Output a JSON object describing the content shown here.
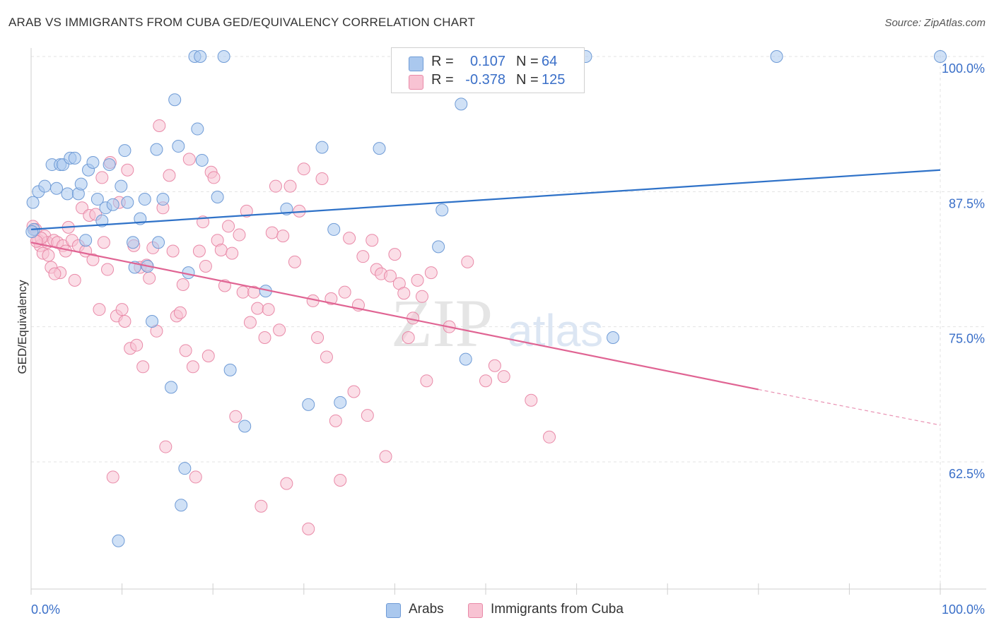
{
  "title": "ARAB VS IMMIGRANTS FROM CUBA GED/EQUIVALENCY CORRELATION CHART",
  "source": "Source: ZipAtlas.com",
  "watermark": {
    "zip": "ZIP",
    "atlas": "atlas"
  },
  "legend": {
    "rows": [
      {
        "r_label": "R =",
        "r_value": "0.107",
        "n_label": "N =",
        "n_value": "64",
        "color": "#aac8ee",
        "border": "#6f9bd6"
      },
      {
        "r_label": "R =",
        "r_value": "-0.378",
        "n_label": "N =",
        "n_value": "125",
        "color": "#f8c3d3",
        "border": "#e98aa8"
      }
    ]
  },
  "bottom_legend": [
    {
      "label": "Arabs",
      "color": "#aac8ee",
      "border": "#6f9bd6"
    },
    {
      "label": "Immigrants from Cuba",
      "color": "#f8c3d3",
      "border": "#e98aa8"
    }
  ],
  "chart_data": {
    "type": "scatter",
    "ylabel": "GED/Equivalency",
    "xlabel": "",
    "x_tick_labels": [
      "0.0%",
      "100.0%"
    ],
    "y_tick_labels": [
      "100.0%",
      "87.5%",
      "75.0%",
      "62.5%"
    ],
    "y_ticks": [
      100.0,
      87.5,
      75.0,
      62.5
    ],
    "xlim": [
      0,
      100
    ],
    "ylim": [
      52.5,
      101.5
    ],
    "grid": true,
    "series": [
      {
        "name": "Arabs",
        "color": "#6f9bd6",
        "fill": "#aac8ee",
        "trend": {
          "x": [
            0,
            100
          ],
          "y": [
            84.0,
            89.5
          ],
          "color": "#2f72c8"
        },
        "points": [
          [
            0.2,
            86.5
          ],
          [
            0.3,
            84.0
          ],
          [
            0.8,
            87.5
          ],
          [
            1.5,
            88.0
          ],
          [
            2.3,
            90.0
          ],
          [
            2.8,
            87.8
          ],
          [
            3.2,
            90.0
          ],
          [
            3.5,
            90.0
          ],
          [
            4.0,
            87.3
          ],
          [
            4.3,
            90.6
          ],
          [
            4.8,
            90.6
          ],
          [
            5.2,
            87.3
          ],
          [
            5.5,
            88.2
          ],
          [
            6.0,
            83.0
          ],
          [
            6.3,
            89.5
          ],
          [
            6.8,
            90.2
          ],
          [
            7.3,
            86.8
          ],
          [
            7.8,
            84.8
          ],
          [
            8.2,
            86.0
          ],
          [
            8.6,
            90.0
          ],
          [
            9.0,
            86.3
          ],
          [
            9.6,
            55.2
          ],
          [
            9.9,
            88.0
          ],
          [
            10.3,
            91.3
          ],
          [
            10.6,
            86.5
          ],
          [
            11.2,
            82.8
          ],
          [
            11.4,
            80.5
          ],
          [
            12.0,
            85.0
          ],
          [
            12.5,
            86.8
          ],
          [
            12.8,
            80.6
          ],
          [
            13.3,
            75.5
          ],
          [
            13.8,
            91.4
          ],
          [
            14.0,
            82.8
          ],
          [
            14.5,
            86.8
          ],
          [
            15.4,
            69.4
          ],
          [
            15.8,
            96.0
          ],
          [
            16.2,
            91.7
          ],
          [
            16.5,
            58.5
          ],
          [
            16.9,
            61.9
          ],
          [
            17.3,
            80.0
          ],
          [
            18.0,
            100.0
          ],
          [
            18.3,
            93.3
          ],
          [
            18.6,
            100.0
          ],
          [
            18.8,
            90.4
          ],
          [
            20.5,
            87.0
          ],
          [
            21.2,
            100.0
          ],
          [
            21.9,
            71.0
          ],
          [
            23.5,
            65.8
          ],
          [
            25.8,
            78.3
          ],
          [
            28.1,
            85.9
          ],
          [
            30.5,
            67.8
          ],
          [
            32.0,
            91.6
          ],
          [
            33.3,
            84.0
          ],
          [
            34.0,
            68.0
          ],
          [
            38.3,
            91.5
          ],
          [
            44.8,
            82.4
          ],
          [
            45.2,
            85.8
          ],
          [
            47.3,
            95.6
          ],
          [
            47.8,
            72.0
          ],
          [
            61.0,
            100.0
          ],
          [
            64.0,
            74.0
          ],
          [
            82.0,
            100.0
          ],
          [
            100.0,
            100.0
          ],
          [
            0.1,
            83.8
          ]
        ]
      },
      {
        "name": "Immigrants from Cuba",
        "color": "#e98aa8",
        "fill": "#f8c3d3",
        "trend": {
          "x": [
            0,
            80
          ],
          "y": [
            82.8,
            69.2
          ],
          "color": "#e06493",
          "dashed_to": {
            "x": 100,
            "y": 65.9
          }
        },
        "points": [
          [
            0.2,
            84.3
          ],
          [
            0.5,
            84.0
          ],
          [
            0.8,
            83.0
          ],
          [
            1.0,
            82.5
          ],
          [
            1.3,
            81.8
          ],
          [
            1.5,
            83.4
          ],
          [
            1.8,
            82.8
          ],
          [
            2.2,
            80.5
          ],
          [
            2.5,
            83.0
          ],
          [
            2.9,
            82.8
          ],
          [
            3.2,
            80.0
          ],
          [
            3.5,
            82.5
          ],
          [
            3.8,
            82.0
          ],
          [
            4.1,
            84.2
          ],
          [
            4.5,
            83.0
          ],
          [
            4.8,
            79.3
          ],
          [
            5.2,
            82.5
          ],
          [
            5.6,
            86.0
          ],
          [
            6.0,
            82.0
          ],
          [
            6.4,
            85.3
          ],
          [
            6.8,
            81.2
          ],
          [
            7.1,
            85.4
          ],
          [
            7.5,
            76.6
          ],
          [
            7.8,
            88.8
          ],
          [
            8.0,
            82.8
          ],
          [
            8.4,
            80.3
          ],
          [
            8.7,
            90.2
          ],
          [
            9.0,
            61.1
          ],
          [
            9.4,
            76.0
          ],
          [
            9.7,
            86.5
          ],
          [
            10.0,
            76.6
          ],
          [
            10.3,
            75.5
          ],
          [
            10.6,
            89.5
          ],
          [
            10.9,
            73.0
          ],
          [
            11.3,
            82.5
          ],
          [
            11.6,
            73.3
          ],
          [
            12.0,
            80.5
          ],
          [
            12.3,
            71.3
          ],
          [
            12.7,
            80.7
          ],
          [
            13.0,
            79.5
          ],
          [
            13.4,
            82.3
          ],
          [
            13.8,
            74.6
          ],
          [
            14.1,
            93.6
          ],
          [
            14.5,
            86.0
          ],
          [
            14.8,
            63.9
          ],
          [
            15.2,
            89.0
          ],
          [
            15.6,
            82.0
          ],
          [
            16.0,
            76.0
          ],
          [
            16.4,
            76.3
          ],
          [
            16.7,
            78.9
          ],
          [
            17.0,
            72.8
          ],
          [
            17.4,
            90.5
          ],
          [
            17.8,
            71.3
          ],
          [
            18.1,
            61.1
          ],
          [
            18.5,
            82.0
          ],
          [
            18.9,
            84.7
          ],
          [
            19.2,
            80.6
          ],
          [
            19.5,
            72.3
          ],
          [
            19.8,
            89.3
          ],
          [
            20.1,
            88.8
          ],
          [
            20.5,
            83.0
          ],
          [
            20.9,
            82.1
          ],
          [
            21.3,
            78.8
          ],
          [
            21.7,
            84.3
          ],
          [
            22.1,
            81.8
          ],
          [
            22.5,
            66.7
          ],
          [
            22.9,
            83.5
          ],
          [
            23.3,
            78.2
          ],
          [
            23.7,
            85.7
          ],
          [
            24.1,
            75.4
          ],
          [
            24.5,
            78.2
          ],
          [
            24.9,
            76.7
          ],
          [
            25.3,
            58.4
          ],
          [
            25.7,
            74.0
          ],
          [
            26.1,
            76.6
          ],
          [
            26.5,
            83.7
          ],
          [
            26.9,
            88.0
          ],
          [
            27.3,
            74.7
          ],
          [
            27.7,
            83.4
          ],
          [
            28.1,
            60.5
          ],
          [
            28.5,
            88.0
          ],
          [
            29.0,
            81.0
          ],
          [
            29.5,
            85.7
          ],
          [
            30.0,
            89.6
          ],
          [
            30.5,
            56.3
          ],
          [
            31.0,
            77.4
          ],
          [
            31.5,
            74.0
          ],
          [
            32.0,
            88.7
          ],
          [
            32.5,
            72.2
          ],
          [
            33.0,
            77.6
          ],
          [
            33.5,
            66.3
          ],
          [
            34.0,
            60.8
          ],
          [
            34.5,
            78.2
          ],
          [
            35.0,
            83.2
          ],
          [
            35.5,
            69.0
          ],
          [
            36.0,
            77.0
          ],
          [
            36.5,
            81.5
          ],
          [
            37.0,
            66.8
          ],
          [
            37.5,
            83.0
          ],
          [
            38.0,
            80.3
          ],
          [
            38.5,
            79.9
          ],
          [
            39.0,
            63.0
          ],
          [
            39.5,
            79.7
          ],
          [
            40.0,
            81.7
          ],
          [
            40.5,
            79.0
          ],
          [
            41.0,
            78.1
          ],
          [
            41.5,
            74.0
          ],
          [
            42.0,
            75.8
          ],
          [
            42.5,
            79.3
          ],
          [
            43.0,
            77.8
          ],
          [
            43.5,
            70.0
          ],
          [
            44.0,
            80.0
          ],
          [
            46.0,
            75.0
          ],
          [
            48.0,
            81.0
          ],
          [
            50.0,
            70.0
          ],
          [
            51.0,
            71.4
          ],
          [
            52.0,
            70.4
          ],
          [
            55.0,
            68.2
          ],
          [
            57.0,
            64.8
          ],
          [
            1.1,
            83.2
          ],
          [
            0.6,
            82.9
          ],
          [
            1.9,
            81.6
          ],
          [
            2.6,
            79.9
          ]
        ]
      }
    ]
  }
}
